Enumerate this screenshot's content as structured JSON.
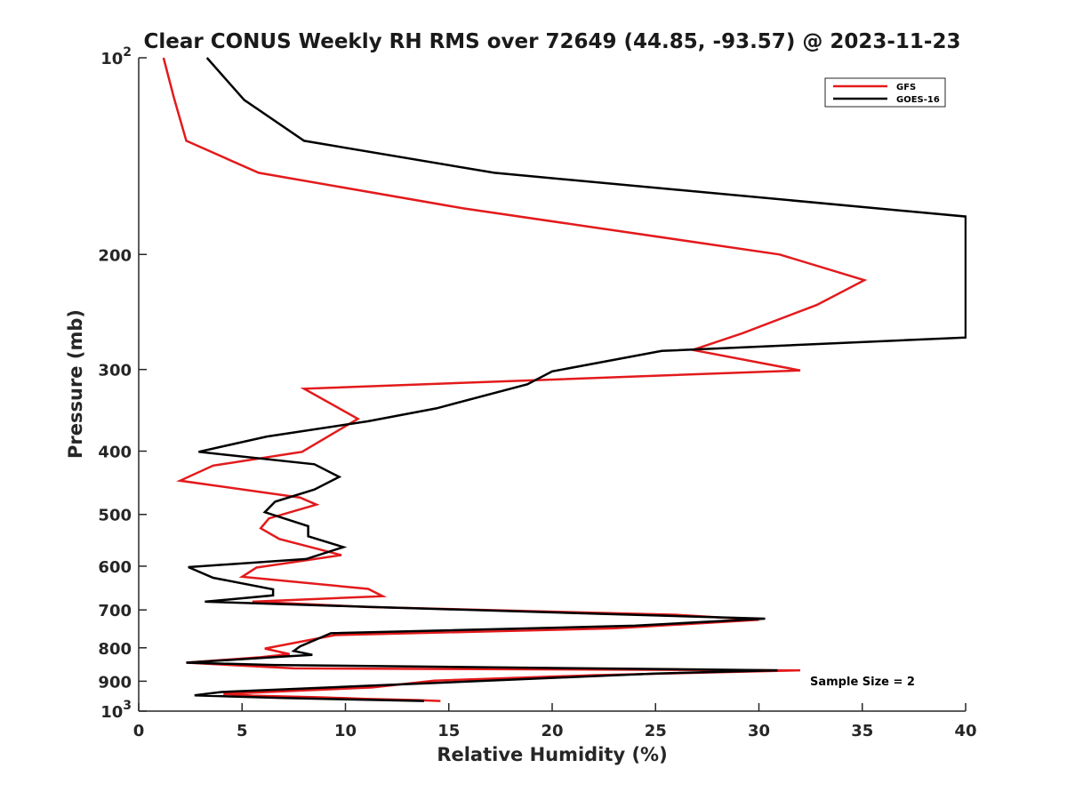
{
  "chart_data": {
    "type": "line",
    "title": "Clear CONUS Weekly RH RMS over 72649 (44.85, -93.57) @ 2023-11-23",
    "xlabel": "Relative Humidity (%)",
    "ylabel": "Pressure (mb)",
    "xlim": [
      0,
      40
    ],
    "ylim": [
      100,
      1000
    ],
    "yscale": "log",
    "y_reversed": true,
    "grid": false,
    "legend_position": "top-right",
    "x_ticks": [
      0,
      5,
      10,
      15,
      20,
      25,
      30,
      35,
      40
    ],
    "x_tick_labels": [
      "0",
      "5",
      "10",
      "15",
      "20",
      "25",
      "30",
      "35",
      "40"
    ],
    "y_ticks": [
      100,
      200,
      300,
      400,
      500,
      600,
      700,
      800,
      900,
      1000
    ],
    "y_tick_labels": [
      {
        "base": "10",
        "exp": "2"
      },
      {
        "base": "200",
        "exp": ""
      },
      {
        "base": "300",
        "exp": ""
      },
      {
        "base": "400",
        "exp": ""
      },
      {
        "base": "500",
        "exp": ""
      },
      {
        "base": "600",
        "exp": ""
      },
      {
        "base": "700",
        "exp": ""
      },
      {
        "base": "800",
        "exp": ""
      },
      {
        "base": "900",
        "exp": ""
      },
      {
        "base": "10",
        "exp": "3"
      }
    ],
    "annotation": "Sample Size = 2",
    "series": [
      {
        "name": "GFS",
        "color": "#e31a1c",
        "points": [
          [
            1.2,
            100
          ],
          [
            1.7,
            115
          ],
          [
            2.3,
            134
          ],
          [
            5.8,
            150
          ],
          [
            15.7,
            170
          ],
          [
            31.0,
            200
          ],
          [
            35.1,
            219
          ],
          [
            32.8,
            239
          ],
          [
            29.2,
            264
          ],
          [
            26.8,
            280
          ],
          [
            32.0,
            301
          ],
          [
            8.0,
            321
          ],
          [
            10.6,
            357
          ],
          [
            7.9,
            401
          ],
          [
            3.6,
            421
          ],
          [
            2.0,
            444
          ],
          [
            7.8,
            471
          ],
          [
            8.6,
            483
          ],
          [
            6.3,
            507
          ],
          [
            5.9,
            525
          ],
          [
            6.8,
            545
          ],
          [
            9.8,
            577
          ],
          [
            5.7,
            603
          ],
          [
            5.0,
            623
          ],
          [
            11.1,
            650
          ],
          [
            11.8,
            667
          ],
          [
            5.5,
            680
          ],
          [
            11.1,
            693
          ],
          [
            26.0,
            712
          ],
          [
            30.0,
            725
          ],
          [
            23.0,
            747
          ],
          [
            9.5,
            765
          ],
          [
            6.1,
            802
          ],
          [
            7.3,
            818
          ],
          [
            5.9,
            827
          ],
          [
            2.3,
            843
          ],
          [
            7.5,
            860
          ],
          [
            31.0,
            866
          ],
          [
            32.0,
            866
          ],
          [
            22.0,
            881
          ],
          [
            14.3,
            898
          ],
          [
            11.3,
            920
          ],
          [
            4.1,
            941
          ],
          [
            5.5,
            947
          ],
          [
            9.0,
            953
          ],
          [
            11.0,
            958
          ],
          [
            13.5,
            962
          ],
          [
            14.6,
            965
          ]
        ]
      },
      {
        "name": "GOES-16",
        "color": "#000000",
        "points": [
          [
            3.3,
            100
          ],
          [
            5.1,
            116
          ],
          [
            8.0,
            134
          ],
          [
            17.2,
            150
          ],
          [
            40.0,
            175
          ],
          [
            40.0,
            268
          ],
          [
            25.3,
            281
          ],
          [
            20.0,
            302
          ],
          [
            18.8,
            316
          ],
          [
            14.4,
            344
          ],
          [
            11.1,
            360
          ],
          [
            6.2,
            380
          ],
          [
            2.9,
            401
          ],
          [
            8.5,
            419
          ],
          [
            9.7,
            438
          ],
          [
            8.5,
            458
          ],
          [
            6.6,
            478
          ],
          [
            6.1,
            496
          ],
          [
            8.2,
            521
          ],
          [
            8.2,
            540
          ],
          [
            9.9,
            561
          ],
          [
            8.1,
            585
          ],
          [
            2.4,
            602
          ],
          [
            3.6,
            625
          ],
          [
            6.5,
            651
          ],
          [
            6.5,
            665
          ],
          [
            3.2,
            680
          ],
          [
            12.0,
            694
          ],
          [
            30.3,
            722
          ],
          [
            24.0,
            740
          ],
          [
            9.3,
            760
          ],
          [
            7.8,
            796
          ],
          [
            7.5,
            809
          ],
          [
            8.4,
            820
          ],
          [
            7.0,
            825
          ],
          [
            2.3,
            843
          ],
          [
            6.5,
            850
          ],
          [
            30.9,
            866
          ],
          [
            25.0,
            876
          ],
          [
            11.3,
            914
          ],
          [
            4.0,
            935
          ],
          [
            2.7,
            946
          ],
          [
            7.0,
            955
          ],
          [
            10.5,
            960
          ],
          [
            13.8,
            965
          ]
        ]
      }
    ]
  }
}
